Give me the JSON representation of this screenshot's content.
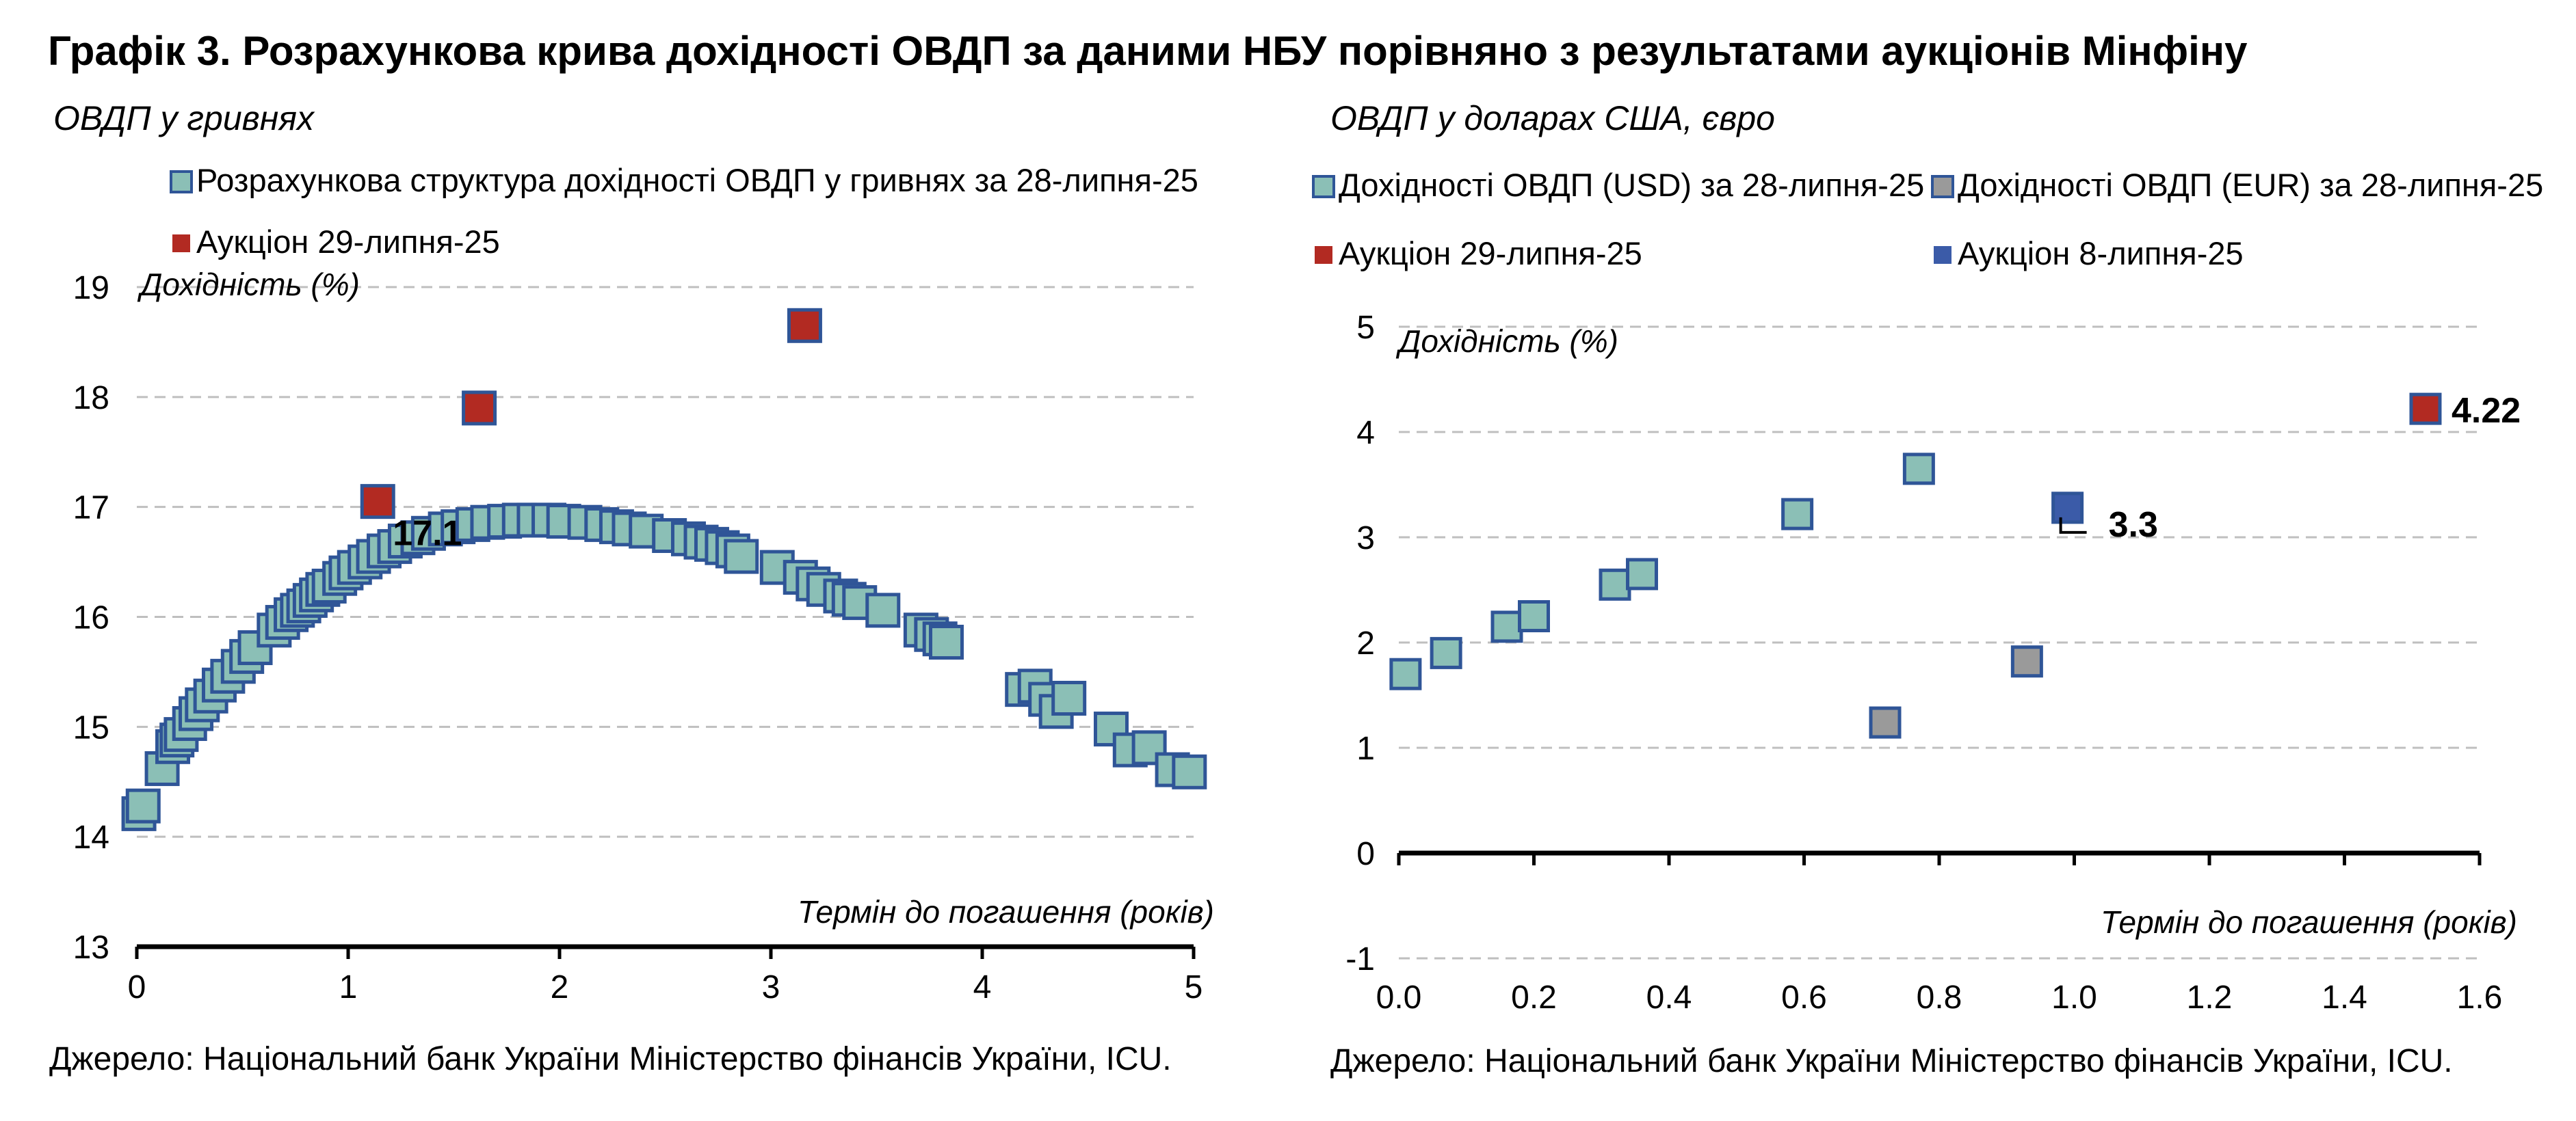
{
  "title": "Графік 3. Розрахункова крива дохідності ОВДП за даними НБУ порівняно з результатами аукціонів Мінфіну",
  "colors": {
    "teal": "#8bbfb6",
    "teal_stroke": "#2f5597",
    "red": "#b22a22",
    "red_stroke": "#2f5597",
    "gray": "#9a9a9a",
    "blue": "#3b5ba8"
  },
  "chart_data": [
    {
      "type": "scatter",
      "subtitle": "ОВДП у гривнях",
      "ylabel": "Дохідність (%)",
      "xlabel": "Термін до погашення (років)",
      "xlim": [
        0,
        5
      ],
      "ylim": [
        13,
        19
      ],
      "xticks": [
        "0",
        "1",
        "2",
        "3",
        "4",
        "5"
      ],
      "yticks": [
        "13",
        "14",
        "15",
        "16",
        "17",
        "18",
        "19"
      ],
      "grid": true,
      "legend_position": "top-left",
      "source": "Джерело: Національний банк України Міністерство фінансів України, ICU.",
      "series": [
        {
          "name": "Розрахункова структура дохідності ОВДП у гривнях за 28-липня-25",
          "color": "teal",
          "points": [
            [
              0.01,
              14.21
            ],
            [
              0.03,
              14.28
            ],
            [
              0.12,
              14.62
            ],
            [
              0.17,
              14.82
            ],
            [
              0.19,
              14.88
            ],
            [
              0.21,
              14.93
            ],
            [
              0.25,
              15.03
            ],
            [
              0.28,
              15.12
            ],
            [
              0.31,
              15.2
            ],
            [
              0.35,
              15.28
            ],
            [
              0.39,
              15.38
            ],
            [
              0.43,
              15.46
            ],
            [
              0.48,
              15.55
            ],
            [
              0.52,
              15.64
            ],
            [
              0.56,
              15.72
            ],
            [
              0.65,
              15.88
            ],
            [
              0.69,
              15.95
            ],
            [
              0.73,
              16.02
            ],
            [
              0.76,
              16.06
            ],
            [
              0.79,
              16.1
            ],
            [
              0.82,
              16.15
            ],
            [
              0.85,
              16.2
            ],
            [
              0.88,
              16.25
            ],
            [
              0.91,
              16.28
            ],
            [
              0.96,
              16.35
            ],
            [
              0.99,
              16.4
            ],
            [
              1.03,
              16.45
            ],
            [
              1.08,
              16.5
            ],
            [
              1.12,
              16.55
            ],
            [
              1.17,
              16.6
            ],
            [
              1.22,
              16.64
            ],
            [
              1.27,
              16.69
            ],
            [
              1.33,
              16.72
            ],
            [
              1.38,
              16.76
            ],
            [
              1.46,
              16.8
            ],
            [
              1.52,
              16.82
            ],
            [
              1.59,
              16.84
            ],
            [
              1.66,
              16.86
            ],
            [
              1.74,
              16.87
            ],
            [
              1.81,
              16.88
            ],
            [
              1.88,
              16.88
            ],
            [
              1.95,
              16.88
            ],
            [
              2.02,
              16.87
            ],
            [
              2.12,
              16.86
            ],
            [
              2.2,
              16.84
            ],
            [
              2.27,
              16.82
            ],
            [
              2.33,
              16.8
            ],
            [
              2.41,
              16.78
            ],
            [
              2.52,
              16.74
            ],
            [
              2.61,
              16.71
            ],
            [
              2.67,
              16.68
            ],
            [
              2.72,
              16.66
            ],
            [
              2.77,
              16.63
            ],
            [
              2.82,
              16.6
            ],
            [
              2.86,
              16.55
            ],
            [
              3.03,
              16.45
            ],
            [
              3.14,
              16.36
            ],
            [
              3.2,
              16.3
            ],
            [
              3.25,
              16.25
            ],
            [
              3.33,
              16.19
            ],
            [
              3.37,
              16.16
            ],
            [
              3.42,
              16.13
            ],
            [
              3.53,
              16.06
            ],
            [
              3.71,
              15.88
            ],
            [
              3.76,
              15.84
            ],
            [
              3.8,
              15.8
            ],
            [
              3.83,
              15.77
            ],
            [
              4.19,
              15.34
            ],
            [
              4.25,
              15.37
            ],
            [
              4.3,
              15.25
            ],
            [
              4.35,
              15.14
            ],
            [
              4.41,
              15.26
            ],
            [
              4.61,
              14.98
            ],
            [
              4.7,
              14.79
            ],
            [
              4.79,
              14.81
            ],
            [
              4.9,
              14.61
            ],
            [
              4.98,
              14.59
            ]
          ]
        },
        {
          "name": "Аукціон 29-липня-25",
          "color": "red",
          "points": [
            [
              1.14,
              17.05
            ],
            [
              1.62,
              17.9
            ],
            [
              3.16,
              18.65
            ]
          ]
        }
      ],
      "annotations": [
        {
          "text": "17.1",
          "x": 1.14,
          "y": 17.05
        }
      ]
    },
    {
      "type": "scatter",
      "subtitle": "ОВДП у доларах США, євро",
      "ylabel": "Дохідність (%)",
      "xlabel": "Термін до погашення (років)",
      "xlim": [
        0,
        1.6
      ],
      "ylim": [
        -1,
        5
      ],
      "xticks": [
        "0.0",
        "0.2",
        "0.4",
        "0.6",
        "0.8",
        "1.0",
        "1.2",
        "1.4",
        "1.6"
      ],
      "yticks": [
        "-1",
        "0",
        "1",
        "2",
        "3",
        "4",
        "5"
      ],
      "grid": true,
      "legend_position": "top",
      "source": "Джерело: Національний банк України Міністерство фінансів України, ICU.",
      "series": [
        {
          "name": "Дохідності ОВДП (USD) за 28-липня-25",
          "color": "teal",
          "points": [
            [
              0.01,
              1.7
            ],
            [
              0.07,
              1.9
            ],
            [
              0.16,
              2.15
            ],
            [
              0.2,
              2.25
            ],
            [
              0.32,
              2.55
            ],
            [
              0.36,
              2.65
            ],
            [
              0.59,
              3.22
            ],
            [
              0.77,
              3.65
            ]
          ]
        },
        {
          "name": "Дохідності ОВДП (EUR) за 28-липня-25",
          "color": "gray",
          "points": [
            [
              0.72,
              1.24
            ],
            [
              0.93,
              1.82
            ]
          ]
        },
        {
          "name": "Аукціон 29-липня-25",
          "color": "red",
          "points": [
            [
              1.52,
              4.22
            ]
          ]
        },
        {
          "name": "Аукціон 8-липня-25",
          "color": "blue",
          "points": [
            [
              0.99,
              3.28
            ]
          ]
        }
      ],
      "annotations": [
        {
          "text": "4.22",
          "x": 1.52,
          "y": 4.22
        },
        {
          "text": "3.3",
          "x": 0.99,
          "y": 3.28
        }
      ]
    }
  ]
}
